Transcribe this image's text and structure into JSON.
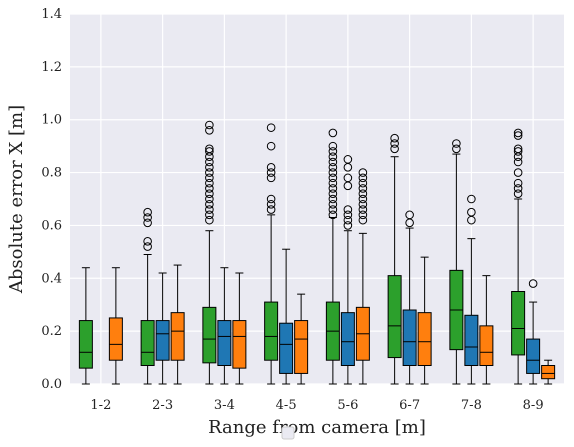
{
  "chart_data": {
    "type": "box",
    "xlabel": "Range from camera [m]",
    "ylabel": "Absolute error X [m]",
    "ylim": [
      0,
      1.4
    ],
    "yticks": [
      "0.0",
      "0.2",
      "0.4",
      "0.6",
      "0.8",
      "1.0",
      "1.2",
      "1.4"
    ],
    "categories": [
      "1-2",
      "2-3",
      "3-4",
      "4-5",
      "5-6",
      "6-7",
      "7-8",
      "8-9"
    ],
    "grid": true,
    "legend": "empty, bottom-center",
    "series": [
      {
        "color": "#2ca02c",
        "boxes": [
          {
            "whisker_low": 0.0,
            "q1": 0.06,
            "median": 0.12,
            "q3": 0.24,
            "whisker_high": 0.44,
            "outliers": []
          },
          {
            "whisker_low": 0.0,
            "q1": 0.07,
            "median": 0.12,
            "q3": 0.24,
            "whisker_high": 0.49,
            "outliers": [
              0.52,
              0.54,
              0.61,
              0.63,
              0.65
            ]
          },
          {
            "whisker_low": 0.0,
            "q1": 0.08,
            "median": 0.17,
            "q3": 0.29,
            "whisker_high": 0.58,
            "outliers": [
              0.62,
              0.64,
              0.66,
              0.68,
              0.7,
              0.72,
              0.74,
              0.76,
              0.78,
              0.8,
              0.82,
              0.84,
              0.86,
              0.88,
              0.89,
              0.96,
              0.98
            ]
          },
          {
            "whisker_low": 0.0,
            "q1": 0.09,
            "median": 0.18,
            "q3": 0.31,
            "whisker_high": 0.64,
            "outliers": [
              0.66,
              0.68,
              0.7,
              0.78,
              0.8,
              0.82,
              0.9,
              0.97
            ]
          },
          {
            "whisker_low": 0.0,
            "q1": 0.09,
            "median": 0.2,
            "q3": 0.31,
            "whisker_high": 0.63,
            "outliers": [
              0.64,
              0.66,
              0.68,
              0.7,
              0.72,
              0.74,
              0.76,
              0.78,
              0.8,
              0.82,
              0.84,
              0.86,
              0.88,
              0.9,
              0.95
            ]
          },
          {
            "whisker_low": 0.0,
            "q1": 0.1,
            "median": 0.22,
            "q3": 0.41,
            "whisker_high": 0.86,
            "outliers": [
              0.89,
              0.91,
              0.93
            ]
          },
          {
            "whisker_low": 0.0,
            "q1": 0.13,
            "median": 0.28,
            "q3": 0.43,
            "whisker_high": 0.87,
            "outliers": [
              0.89,
              0.91
            ]
          },
          {
            "whisker_low": 0.0,
            "q1": 0.11,
            "median": 0.21,
            "q3": 0.35,
            "whisker_high": 0.7,
            "outliers": [
              0.72,
              0.74,
              0.76,
              0.8,
              0.84,
              0.86,
              0.88,
              0.89,
              0.94,
              0.95
            ]
          }
        ]
      },
      {
        "color": "#1f77b4",
        "boxes": [
          null,
          {
            "whisker_low": 0.0,
            "q1": 0.09,
            "median": 0.19,
            "q3": 0.24,
            "whisker_high": 0.42,
            "outliers": []
          },
          {
            "whisker_low": 0.0,
            "q1": 0.07,
            "median": 0.18,
            "q3": 0.24,
            "whisker_high": 0.44,
            "outliers": []
          },
          {
            "whisker_low": 0.0,
            "q1": 0.04,
            "median": 0.15,
            "q3": 0.23,
            "whisker_high": 0.51,
            "outliers": []
          },
          {
            "whisker_low": 0.0,
            "q1": 0.07,
            "median": 0.16,
            "q3": 0.27,
            "whisker_high": 0.58,
            "outliers": [
              0.6,
              0.62,
              0.64,
              0.66,
              0.75,
              0.78,
              0.82,
              0.85
            ]
          },
          {
            "whisker_low": 0.0,
            "q1": 0.07,
            "median": 0.16,
            "q3": 0.28,
            "whisker_high": 0.59,
            "outliers": [
              0.61,
              0.64
            ]
          },
          {
            "whisker_low": 0.0,
            "q1": 0.07,
            "median": 0.14,
            "q3": 0.26,
            "whisker_high": 0.55,
            "outliers": [
              0.62,
              0.65,
              0.7
            ]
          },
          {
            "whisker_low": 0.0,
            "q1": 0.04,
            "median": 0.09,
            "q3": 0.17,
            "whisker_high": 0.31,
            "outliers": [
              0.38
            ]
          }
        ]
      },
      {
        "color": "#ff7f0e",
        "boxes": [
          {
            "whisker_low": 0.0,
            "q1": 0.09,
            "median": 0.15,
            "q3": 0.25,
            "whisker_high": 0.44,
            "outliers": []
          },
          {
            "whisker_low": 0.0,
            "q1": 0.09,
            "median": 0.2,
            "q3": 0.27,
            "whisker_high": 0.45,
            "outliers": []
          },
          {
            "whisker_low": 0.0,
            "q1": 0.06,
            "median": 0.18,
            "q3": 0.24,
            "whisker_high": 0.42,
            "outliers": []
          },
          {
            "whisker_low": 0.0,
            "q1": 0.04,
            "median": 0.17,
            "q3": 0.24,
            "whisker_high": 0.34,
            "outliers": []
          },
          {
            "whisker_low": 0.0,
            "q1": 0.09,
            "median": 0.19,
            "q3": 0.29,
            "whisker_high": 0.57,
            "outliers": [
              0.62,
              0.64,
              0.66,
              0.68,
              0.7,
              0.72,
              0.74,
              0.76,
              0.78,
              0.8
            ]
          },
          {
            "whisker_low": 0.0,
            "q1": 0.07,
            "median": 0.16,
            "q3": 0.27,
            "whisker_high": 0.48,
            "outliers": []
          },
          {
            "whisker_low": 0.0,
            "q1": 0.07,
            "median": 0.12,
            "q3": 0.22,
            "whisker_high": 0.41,
            "outliers": []
          },
          {
            "whisker_low": 0.0,
            "q1": 0.02,
            "median": 0.04,
            "q3": 0.07,
            "whisker_high": 0.09,
            "outliers": []
          }
        ]
      }
    ]
  }
}
